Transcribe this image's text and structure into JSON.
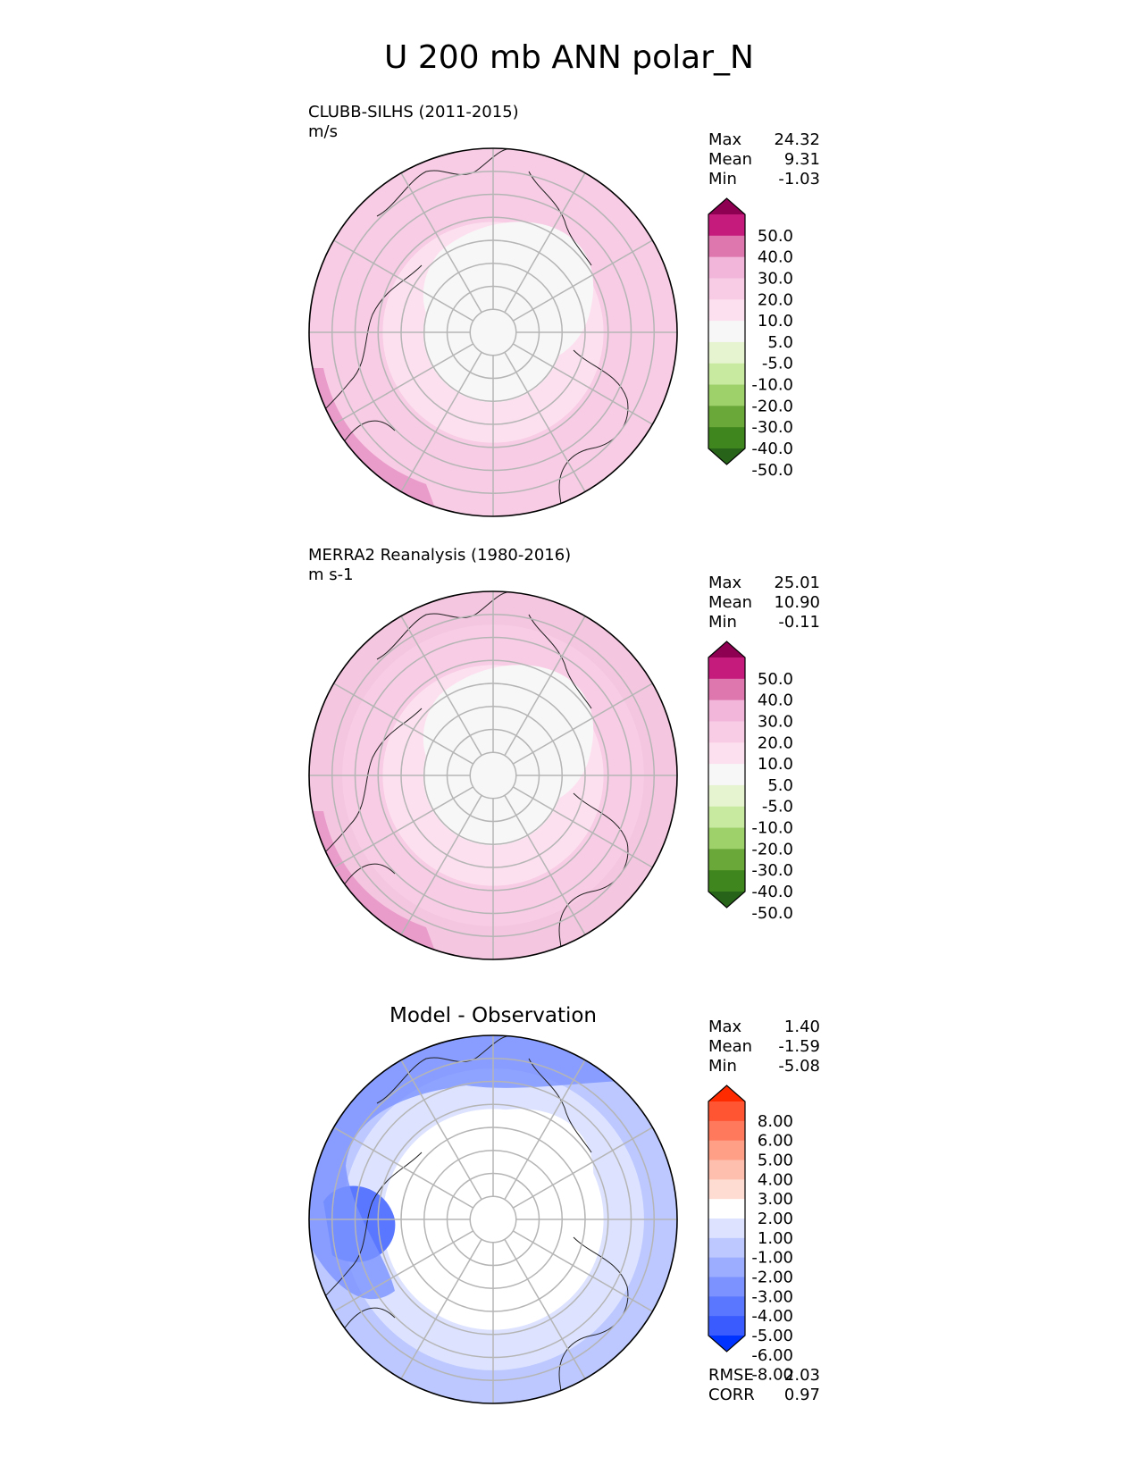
{
  "title": "U 200 mb ANN polar_N",
  "chart_data": [
    {
      "type": "heatmap",
      "projection": "north polar stereographic",
      "title": "CLUBB-SILHS (2011-2015)",
      "units": "m/s",
      "stats": [
        {
          "label": "Max",
          "value": "24.32"
        },
        {
          "label": "Mean",
          "value": "9.31"
        },
        {
          "label": "Min",
          "value": "-1.03"
        }
      ],
      "colorbar": {
        "extend": "both",
        "tick_labels": [
          "50.0",
          "40.0",
          "30.0",
          "20.0",
          "10.0",
          "5.0",
          "-5.0",
          "-10.0",
          "-20.0",
          "-30.0",
          "-40.0",
          "-50.0"
        ],
        "colors": [
          "#8e0152",
          "#c51b7d",
          "#de77ae",
          "#f1b6da",
          "#f7cce4",
          "#fde0ef",
          "#f7f7f7",
          "#e6f5d0",
          "#c7e9a0",
          "#9ed16a",
          "#6aa839",
          "#3f861f",
          "#276419"
        ]
      },
      "field": {
        "rings_min_to_max": [
          {
            "band": "pole",
            "fill": "#f7f7f7"
          },
          {
            "band": "inner",
            "fill": "#fde0ef"
          },
          {
            "band": "middle",
            "fill": "#f7cce4"
          },
          {
            "band": "outer",
            "fill": "#f7cce4"
          }
        ],
        "strong_jet_region": "lower-left rim",
        "strong_jet_fill": "#e99bca"
      }
    },
    {
      "type": "heatmap",
      "projection": "north polar stereographic",
      "title": "MERRA2 Reanalysis (1980-2016)",
      "units": "m s-1",
      "stats": [
        {
          "label": "Max",
          "value": "25.01"
        },
        {
          "label": "Mean",
          "value": "10.90"
        },
        {
          "label": "Min",
          "value": "-0.11"
        }
      ],
      "colorbar": {
        "extend": "both",
        "tick_labels": [
          "50.0",
          "40.0",
          "30.0",
          "20.0",
          "10.0",
          "5.0",
          "-5.0",
          "-10.0",
          "-20.0",
          "-30.0",
          "-40.0",
          "-50.0"
        ],
        "colors": [
          "#8e0152",
          "#c51b7d",
          "#de77ae",
          "#f1b6da",
          "#f7cce4",
          "#fde0ef",
          "#f7f7f7",
          "#e6f5d0",
          "#c7e9a0",
          "#9ed16a",
          "#6aa839",
          "#3f861f",
          "#276419"
        ]
      },
      "field": {
        "rings_min_to_max": [
          {
            "band": "pole",
            "fill": "#f7f7f7"
          },
          {
            "band": "inner",
            "fill": "#fde0ef"
          },
          {
            "band": "middle",
            "fill": "#f7cce4"
          },
          {
            "band": "outer",
            "fill": "#f4c6df"
          }
        ],
        "strong_jet_region": "lower-left rim",
        "strong_jet_fill": "#e99bca"
      }
    },
    {
      "type": "heatmap",
      "projection": "north polar stereographic",
      "title": "Model - Observation",
      "stats": [
        {
          "label": "Max",
          "value": "1.40"
        },
        {
          "label": "Mean",
          "value": "-1.59"
        },
        {
          "label": "Min",
          "value": "-5.08"
        }
      ],
      "extra_stats": [
        {
          "label": "RMSE",
          "value": "2.03"
        },
        {
          "label": "CORR",
          "value": "0.97"
        }
      ],
      "colorbar": {
        "extend": "both",
        "tick_labels": [
          "8.00",
          "6.00",
          "5.00",
          "4.00",
          "3.00",
          "2.00",
          "1.00",
          "-1.00",
          "-2.00",
          "-3.00",
          "-4.00",
          "-5.00",
          "-6.00",
          "-8.00"
        ],
        "colors": [
          "#ff2b00",
          "#ff5533",
          "#ff7a5c",
          "#ff9f85",
          "#ffbfae",
          "#ffdcd2",
          "#ffffff",
          "#dde3ff",
          "#bcc8ff",
          "#9cadff",
          "#7b92ff",
          "#5a77ff",
          "#3a5cff",
          "#0033ff"
        ]
      },
      "field": {
        "rings_min_to_max": [
          {
            "band": "pole",
            "fill": "#ffffff"
          },
          {
            "band": "inner",
            "fill": "#ffffff"
          },
          {
            "band": "middle",
            "fill": "#dde3ff"
          },
          {
            "band": "outer",
            "fill": "#bcc8ff"
          }
        ],
        "strong_jet_region": "upper rim and left side",
        "strong_jet_fill": "#7b92ff"
      }
    }
  ]
}
